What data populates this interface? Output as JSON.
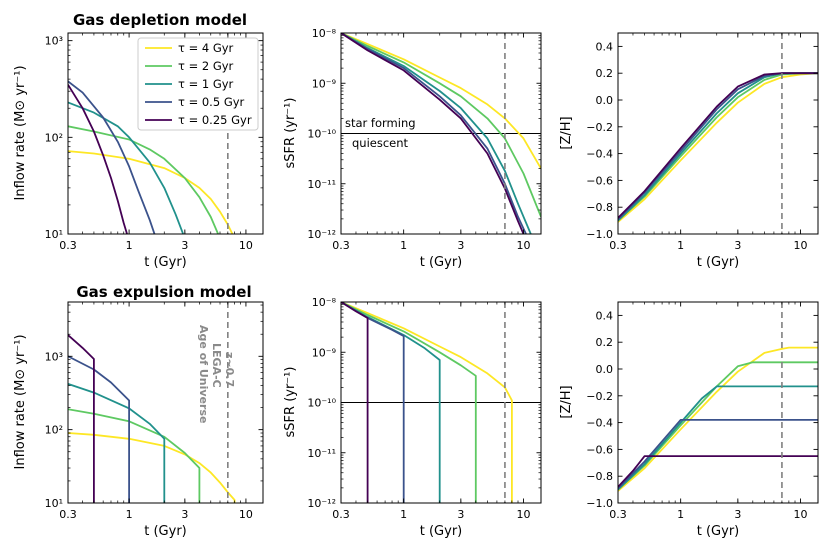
{
  "colors": {
    "tau_4": "#fde725",
    "tau_2": "#5ec962",
    "tau_1": "#21918c",
    "tau_0_5": "#3b528b",
    "tau_0_25": "#440154",
    "vline": "#808080",
    "threshold": "#000000"
  },
  "chart_data": [
    {
      "id": "depl_inflow",
      "type": "line",
      "title": "Gas depletion model",
      "xlabel": "t (Gyr)",
      "ylabel": "Inflow rate (M⊙ yr⁻¹)",
      "xscale": "log",
      "yscale": "log",
      "xlim": [
        0.3,
        14
      ],
      "ylim": [
        10,
        1200
      ],
      "xticks": [
        0.3,
        1,
        3,
        10
      ],
      "xtick_labels": [
        "0.3",
        "1",
        "3",
        "10"
      ],
      "yticks": [
        10,
        100,
        1000
      ],
      "ytick_labels": [
        "10¹",
        "10²",
        "10³"
      ],
      "vline_x": 7,
      "legend": [
        "τ = 4 Gyr",
        "τ = 2 Gyr",
        "τ = 1 Gyr",
        "τ = 0.5 Gyr",
        "τ = 0.25 Gyr"
      ],
      "series": [
        {
          "name": "τ = 4 Gyr",
          "color_key": "tau_4",
          "x": [
            0.3,
            0.5,
            1,
            2,
            3,
            4,
            5,
            6,
            7,
            8
          ],
          "y": [
            72,
            68,
            60,
            48,
            38,
            30,
            23,
            17,
            12.5,
            9
          ]
        },
        {
          "name": "τ = 2 Gyr",
          "color_key": "tau_2",
          "x": [
            0.3,
            0.5,
            1,
            1.5,
            2,
            3,
            4,
            5,
            6
          ],
          "y": [
            130,
            115,
            95,
            75,
            60,
            38,
            24,
            15,
            9
          ]
        },
        {
          "name": "τ = 1 Gyr",
          "color_key": "tau_1",
          "x": [
            0.3,
            0.5,
            0.8,
            1,
            1.5,
            2,
            2.5,
            3
          ],
          "y": [
            230,
            180,
            130,
            100,
            55,
            30,
            16,
            9
          ]
        },
        {
          "name": "τ = 0.5 Gyr",
          "color_key": "tau_0_5",
          "x": [
            0.3,
            0.4,
            0.6,
            0.8,
            1,
            1.2,
            1.5,
            1.7
          ],
          "y": [
            380,
            290,
            160,
            90,
            50,
            28,
            14,
            9
          ]
        },
        {
          "name": "τ = 0.25 Gyr",
          "color_key": "tau_0_25",
          "x": [
            0.3,
            0.4,
            0.5,
            0.6,
            0.7,
            0.8,
            0.9,
            1.0
          ],
          "y": [
            350,
            200,
            115,
            65,
            38,
            22,
            13,
            8.5
          ]
        }
      ]
    },
    {
      "id": "depl_ssfr",
      "type": "line",
      "xlabel": "t (Gyr)",
      "ylabel": "sSFR (yr⁻¹)",
      "xscale": "log",
      "yscale": "log",
      "xlim": [
        0.3,
        14
      ],
      "ylim": [
        1e-12,
        1e-08
      ],
      "xticks": [
        0.3,
        1,
        3,
        10
      ],
      "xtick_labels": [
        "0.3",
        "1",
        "3",
        "10"
      ],
      "yticks": [
        1e-12,
        1e-11,
        1e-10,
        1e-09,
        1e-08
      ],
      "ytick_labels": [
        "10⁻¹²",
        "10⁻¹¹",
        "10⁻¹⁰",
        "10⁻⁹",
        "10⁻⁸"
      ],
      "vline_x": 7,
      "hline_y": 1e-10,
      "annotations": [
        "star forming",
        "quiescent"
      ],
      "series": [
        {
          "name": "τ = 4 Gyr",
          "color_key": "tau_4",
          "x": [
            0.3,
            0.5,
            1,
            2,
            3,
            5,
            7,
            10,
            14
          ],
          "y": [
            1e-08,
            6e-09,
            3e-09,
            1.3e-09,
            8e-10,
            3.8e-10,
            2e-10,
            8e-11,
            2e-11
          ]
        },
        {
          "name": "τ = 2 Gyr",
          "color_key": "tau_2",
          "x": [
            0.3,
            0.5,
            1,
            2,
            3,
            5,
            7,
            10,
            14
          ],
          "y": [
            1e-08,
            5.5e-09,
            2.6e-09,
            1e-09,
            5.5e-10,
            2e-10,
            8e-11,
            1.6e-11,
            2.2e-12
          ]
        },
        {
          "name": "τ = 1 Gyr",
          "color_key": "tau_1",
          "x": [
            0.3,
            0.5,
            1,
            2,
            3,
            5,
            7,
            9,
            11.5
          ],
          "y": [
            1e-08,
            5e-09,
            2.2e-09,
            7e-10,
            3.2e-10,
            8e-11,
            1.8e-11,
            4e-12,
            1e-12
          ]
        },
        {
          "name": "τ = 0.5 Gyr",
          "color_key": "tau_0_5",
          "x": [
            0.3,
            0.5,
            1,
            2,
            3,
            5,
            7,
            9,
            10.5
          ],
          "y": [
            1e-08,
            4.8e-09,
            2e-09,
            5.5e-10,
            2.3e-10,
            5e-11,
            1e-11,
            2.2e-12,
            1e-12
          ]
        },
        {
          "name": "τ = 0.25 Gyr",
          "color_key": "tau_0_25",
          "x": [
            0.3,
            0.5,
            1,
            2,
            3,
            5,
            7,
            9,
            10
          ],
          "y": [
            1e-08,
            4.5e-09,
            1.8e-09,
            4.7e-10,
            2e-10,
            4e-11,
            8e-12,
            1.8e-12,
            1e-12
          ]
        }
      ]
    },
    {
      "id": "depl_zh",
      "type": "line",
      "xlabel": "t (Gyr)",
      "ylabel": "[Z/H]",
      "xscale": "log",
      "yscale": "linear",
      "xlim": [
        0.3,
        14
      ],
      "ylim": [
        -1.0,
        0.5
      ],
      "xticks": [
        0.3,
        1,
        3,
        10
      ],
      "xtick_labels": [
        "0.3",
        "1",
        "3",
        "10"
      ],
      "yticks": [
        -1.0,
        -0.8,
        -0.6,
        -0.4,
        -0.2,
        0.0,
        0.2,
        0.4
      ],
      "ytick_labels": [
        "−1.0",
        "−0.8",
        "−0.6",
        "−0.4",
        "−0.2",
        "0.0",
        "0.2",
        "0.4"
      ],
      "vline_x": 7,
      "series": [
        {
          "name": "τ = 4 Gyr",
          "color_key": "tau_4",
          "x": [
            0.3,
            0.5,
            1,
            2,
            3,
            5,
            7,
            10,
            14
          ],
          "y": [
            -0.91,
            -0.74,
            -0.45,
            -0.17,
            -0.02,
            0.12,
            0.17,
            0.19,
            0.2
          ]
        },
        {
          "name": "τ = 2 Gyr",
          "color_key": "tau_2",
          "x": [
            0.3,
            0.5,
            1,
            2,
            3,
            5,
            7,
            10,
            14
          ],
          "y": [
            -0.9,
            -0.72,
            -0.42,
            -0.13,
            0.02,
            0.15,
            0.19,
            0.2,
            0.2
          ]
        },
        {
          "name": "τ = 1 Gyr",
          "color_key": "tau_1",
          "x": [
            0.3,
            0.5,
            1,
            2,
            3,
            5,
            7,
            10,
            14
          ],
          "y": [
            -0.9,
            -0.71,
            -0.4,
            -0.1,
            0.05,
            0.17,
            0.2,
            0.2,
            0.2
          ]
        },
        {
          "name": "τ = 0.5 Gyr",
          "color_key": "tau_0_5",
          "x": [
            0.3,
            0.5,
            1,
            2,
            3,
            5,
            7,
            10,
            14
          ],
          "y": [
            -0.89,
            -0.69,
            -0.38,
            -0.07,
            0.08,
            0.18,
            0.2,
            0.2,
            0.2
          ]
        },
        {
          "name": "τ = 0.25 Gyr",
          "color_key": "tau_0_25",
          "x": [
            0.3,
            0.5,
            1,
            2,
            3,
            5,
            7,
            10,
            14
          ],
          "y": [
            -0.88,
            -0.68,
            -0.36,
            -0.05,
            0.1,
            0.19,
            0.2,
            0.2,
            0.2
          ]
        }
      ]
    },
    {
      "id": "expl_inflow",
      "type": "line",
      "title": "Gas expulsion model",
      "xlabel": "t (Gyr)",
      "ylabel": "Inflow rate (M⊙ yr⁻¹)",
      "xscale": "log",
      "yscale": "log",
      "xlim": [
        0.3,
        14
      ],
      "ylim": [
        10,
        5500
      ],
      "xticks": [
        0.3,
        1,
        3,
        10
      ],
      "xtick_labels": [
        "0.3",
        "1",
        "3",
        "10"
      ],
      "yticks": [
        10,
        100,
        1000
      ],
      "ytick_labels": [
        "10¹",
        "10²",
        "10³"
      ],
      "vline_x": 7,
      "vline_label": [
        "Age of Universe",
        "LEGA-C",
        "z~0.7"
      ],
      "series": [
        {
          "name": "τ = 4 Gyr",
          "color_key": "tau_4",
          "x": [
            0.3,
            0.5,
            1,
            2,
            3,
            4,
            5,
            6,
            7,
            8,
            8
          ],
          "y": [
            90,
            85,
            75,
            60,
            46,
            35,
            26,
            19,
            14,
            11,
            10
          ]
        },
        {
          "name": "τ = 2 Gyr",
          "color_key": "tau_2",
          "x": [
            0.3,
            0.5,
            1,
            2,
            3,
            4,
            4
          ],
          "y": [
            190,
            165,
            130,
            80,
            48,
            30,
            10
          ]
        },
        {
          "name": "τ = 1 Gyr",
          "color_key": "tau_1",
          "x": [
            0.3,
            0.5,
            1,
            1.5,
            2,
            2
          ],
          "y": [
            420,
            320,
            195,
            120,
            75,
            10
          ]
        },
        {
          "name": "τ = 0.5 Gyr",
          "color_key": "tau_0_5",
          "x": [
            0.3,
            0.5,
            0.7,
            1,
            1
          ],
          "y": [
            1000,
            660,
            440,
            250,
            10
          ]
        },
        {
          "name": "τ = 0.25 Gyr",
          "color_key": "tau_0_25",
          "x": [
            0.3,
            0.4,
            0.5,
            0.5
          ],
          "y": [
            1950,
            1300,
            920,
            10
          ]
        }
      ]
    },
    {
      "id": "expl_ssfr",
      "type": "line",
      "xlabel": "t (Gyr)",
      "ylabel": "sSFR (yr⁻¹)",
      "xscale": "log",
      "yscale": "log",
      "xlim": [
        0.3,
        14
      ],
      "ylim": [
        1e-12,
        1e-08
      ],
      "xticks": [
        0.3,
        1,
        3,
        10
      ],
      "xtick_labels": [
        "0.3",
        "1",
        "3",
        "10"
      ],
      "yticks": [
        1e-12,
        1e-11,
        1e-10,
        1e-09,
        1e-08
      ],
      "ytick_labels": [
        "10⁻¹²",
        "10⁻¹¹",
        "10⁻¹⁰",
        "10⁻⁹",
        "10⁻⁸"
      ],
      "vline_x": 7,
      "hline_y": 1e-10,
      "series": [
        {
          "name": "τ = 4 Gyr",
          "color_key": "tau_4",
          "x": [
            0.3,
            0.5,
            1,
            2,
            3,
            5,
            7,
            8,
            8
          ],
          "y": [
            1e-08,
            6e-09,
            3e-09,
            1.3e-09,
            8e-10,
            3.8e-10,
            2e-10,
            1.1e-10,
            1e-12
          ]
        },
        {
          "name": "τ = 2 Gyr",
          "color_key": "tau_2",
          "x": [
            0.3,
            0.5,
            1,
            2,
            3,
            4,
            4
          ],
          "y": [
            1e-08,
            5.5e-09,
            2.6e-09,
            1e-09,
            5.5e-10,
            3.4e-10,
            1e-12
          ]
        },
        {
          "name": "τ = 1 Gyr",
          "color_key": "tau_1",
          "x": [
            0.3,
            0.5,
            1,
            1.5,
            2,
            2
          ],
          "y": [
            1e-08,
            5e-09,
            2.2e-09,
            1.2e-09,
            7e-10,
            1e-12
          ]
        },
        {
          "name": "τ = 0.5 Gyr",
          "color_key": "tau_0_5",
          "x": [
            0.3,
            0.5,
            0.8,
            1,
            1
          ],
          "y": [
            1e-08,
            4.8e-09,
            2.8e-09,
            2.1e-09,
            1e-12
          ]
        },
        {
          "name": "τ = 0.25 Gyr",
          "color_key": "tau_0_25",
          "x": [
            0.3,
            0.4,
            0.5,
            0.5
          ],
          "y": [
            1e-08,
            6.5e-09,
            4.8e-09,
            1e-12
          ]
        }
      ]
    },
    {
      "id": "expl_zh",
      "type": "line",
      "xlabel": "t (Gyr)",
      "ylabel": "[Z/H]",
      "xscale": "log",
      "yscale": "linear",
      "xlim": [
        0.3,
        14
      ],
      "ylim": [
        -1.0,
        0.5
      ],
      "xticks": [
        0.3,
        1,
        3,
        10
      ],
      "xtick_labels": [
        "0.3",
        "1",
        "3",
        "10"
      ],
      "yticks": [
        -1.0,
        -0.8,
        -0.6,
        -0.4,
        -0.2,
        0.0,
        0.2,
        0.4
      ],
      "ytick_labels": [
        "−1.0",
        "−0.8",
        "−0.6",
        "−0.4",
        "−0.2",
        "0.0",
        "0.2",
        "0.4"
      ],
      "vline_x": 7,
      "series": [
        {
          "name": "τ = 4 Gyr",
          "color_key": "tau_4",
          "x": [
            0.3,
            0.5,
            1,
            2,
            3,
            5,
            7,
            8,
            14
          ],
          "y": [
            -0.91,
            -0.74,
            -0.45,
            -0.17,
            -0.02,
            0.12,
            0.15,
            0.16,
            0.16
          ]
        },
        {
          "name": "τ = 2 Gyr",
          "color_key": "tau_2",
          "x": [
            0.3,
            0.5,
            1,
            2,
            3,
            4,
            14
          ],
          "y": [
            -0.9,
            -0.72,
            -0.42,
            -0.13,
            0.02,
            0.05,
            0.05
          ]
        },
        {
          "name": "τ = 1 Gyr",
          "color_key": "tau_1",
          "x": [
            0.3,
            0.5,
            1,
            1.5,
            2,
            14
          ],
          "y": [
            -0.9,
            -0.71,
            -0.4,
            -0.22,
            -0.13,
            -0.13
          ]
        },
        {
          "name": "τ = 0.5 Gyr",
          "color_key": "tau_0_5",
          "x": [
            0.3,
            0.5,
            0.8,
            1,
            14
          ],
          "y": [
            -0.89,
            -0.69,
            -0.48,
            -0.38,
            -0.38
          ]
        },
        {
          "name": "τ = 0.25 Gyr",
          "color_key": "tau_0_25",
          "x": [
            0.3,
            0.4,
            0.5,
            14
          ],
          "y": [
            -0.88,
            -0.76,
            -0.65,
            -0.65
          ]
        }
      ]
    }
  ]
}
